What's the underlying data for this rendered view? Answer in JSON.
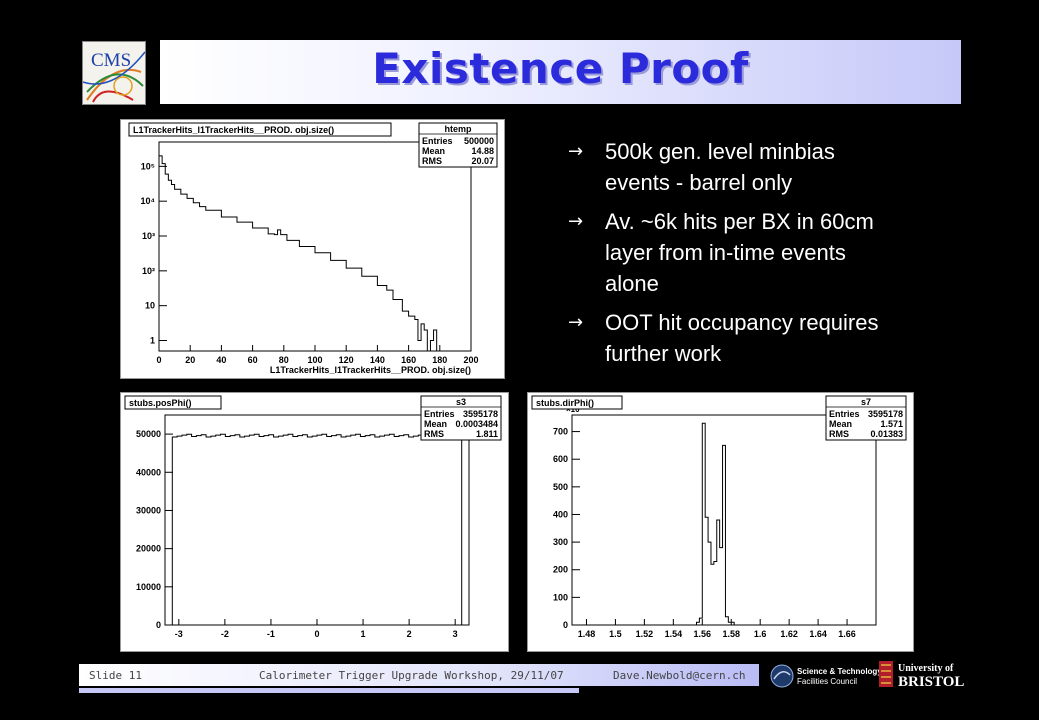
{
  "slide": {
    "title": "Existence Proof",
    "bullets": [
      "500k gen. level minbias events - barrel only",
      "Av. ~6k hits per BX in 60cm layer from in-time events alone",
      "OOT hit occupancy requires further work"
    ],
    "bullet_glyph": "→",
    "logo_text": "CMS",
    "footer": {
      "slide_number": "Slide 11",
      "event": "Calorimeter Trigger Upgrade Workshop, 29/11/07",
      "email": "Dave.Newbold@cern.ch"
    },
    "stfc_logo": {
      "line1": "Science & Technology",
      "line2": "Facilities Council"
    },
    "bristol_logo": {
      "line1": "University of",
      "line2": "BRISTOL"
    }
  },
  "chart_data": [
    {
      "type": "histogram",
      "title": "L1TrackerHits_l1TrackerHits__PROD.  obj.size()",
      "xlabel": "L1TrackerHits_l1TrackerHits__PROD.  obj.size()",
      "ylabel": "",
      "log_y": true,
      "xlim": [
        0,
        200
      ],
      "ylim": [
        0.5,
        500000
      ],
      "x_ticks": [
        "0",
        "20",
        "40",
        "60",
        "80",
        "100",
        "120",
        "140",
        "160",
        "180",
        "200"
      ],
      "y_ticks": [
        "1",
        "10",
        "10²",
        "10³",
        "10⁴",
        "10⁵"
      ],
      "stats": {
        "name": "htemp",
        "entries_label": "Entries",
        "entries": "500000",
        "mean_label": "Mean",
        "mean": "14.88",
        "rms_label": "RMS",
        "rms": "20.07"
      },
      "points": [
        [
          0,
          200000
        ],
        [
          2,
          120000
        ],
        [
          4,
          60000
        ],
        [
          6,
          40000
        ],
        [
          8,
          30000
        ],
        [
          10,
          22000
        ],
        [
          14,
          16000
        ],
        [
          18,
          12000
        ],
        [
          22,
          9000
        ],
        [
          26,
          7000
        ],
        [
          30,
          5500
        ],
        [
          40,
          3500
        ],
        [
          50,
          2500
        ],
        [
          60,
          1700
        ],
        [
          70,
          1150
        ],
        [
          74,
          1100
        ],
        [
          76,
          1500
        ],
        [
          78,
          1100
        ],
        [
          82,
          750
        ],
        [
          90,
          500
        ],
        [
          100,
          330
        ],
        [
          110,
          200
        ],
        [
          120,
          120
        ],
        [
          130,
          70
        ],
        [
          140,
          38
        ],
        [
          146,
          28
        ],
        [
          150,
          15
        ],
        [
          156,
          7
        ],
        [
          160,
          5
        ],
        [
          164,
          4
        ],
        [
          166,
          1
        ],
        [
          168,
          3
        ],
        [
          170,
          2
        ],
        [
          172,
          0.5
        ],
        [
          174,
          1
        ],
        [
          176,
          2
        ],
        [
          178,
          0.5
        ],
        [
          182,
          0.5
        ]
      ]
    },
    {
      "type": "histogram",
      "title": "stubs.posPhi()",
      "xlabel": "",
      "ylabel": "",
      "xlim": [
        -3.3,
        3.3
      ],
      "ylim": [
        0,
        55000
      ],
      "x_ticks": [
        "-3",
        "-2",
        "-1",
        "0",
        "1",
        "2",
        "3"
      ],
      "y_ticks": [
        "0",
        "10000",
        "20000",
        "30000",
        "40000",
        "50000"
      ],
      "stats": {
        "name": "s3",
        "entries_label": "Entries",
        "entries": "3595178",
        "mean_label": "Mean",
        "mean": "0.0003484",
        "rms_label": "RMS",
        "rms": "1.811"
      },
      "level": 49600
    },
    {
      "type": "histogram",
      "title": "stubs.dirPhi()",
      "xlabel": "",
      "ylabel": "",
      "y_multiplier": "×10³",
      "xlim": [
        1.47,
        1.68
      ],
      "ylim": [
        0,
        760
      ],
      "x_ticks": [
        "1.48",
        "1.5",
        "1.52",
        "1.54",
        "1.56",
        "1.58",
        "1.6",
        "1.62",
        "1.64",
        "1.66"
      ],
      "y_ticks": [
        "0",
        "100",
        "200",
        "300",
        "400",
        "500",
        "600",
        "700"
      ],
      "stats": {
        "name": "s7",
        "entries_label": "Entries",
        "entries": "3595178",
        "mean_label": "Mean",
        "mean": "1.571",
        "rms_label": "RMS",
        "rms": "0.01383"
      },
      "points": [
        [
          1.48,
          0
        ],
        [
          1.55,
          0
        ],
        [
          1.556,
          10
        ],
        [
          1.558,
          25
        ],
        [
          1.56,
          730
        ],
        [
          1.562,
          390
        ],
        [
          1.564,
          300
        ],
        [
          1.566,
          220
        ],
        [
          1.568,
          230
        ],
        [
          1.57,
          380
        ],
        [
          1.572,
          280
        ],
        [
          1.574,
          650
        ],
        [
          1.576,
          30
        ],
        [
          1.578,
          10
        ],
        [
          1.582,
          0
        ],
        [
          1.66,
          0
        ]
      ]
    }
  ]
}
